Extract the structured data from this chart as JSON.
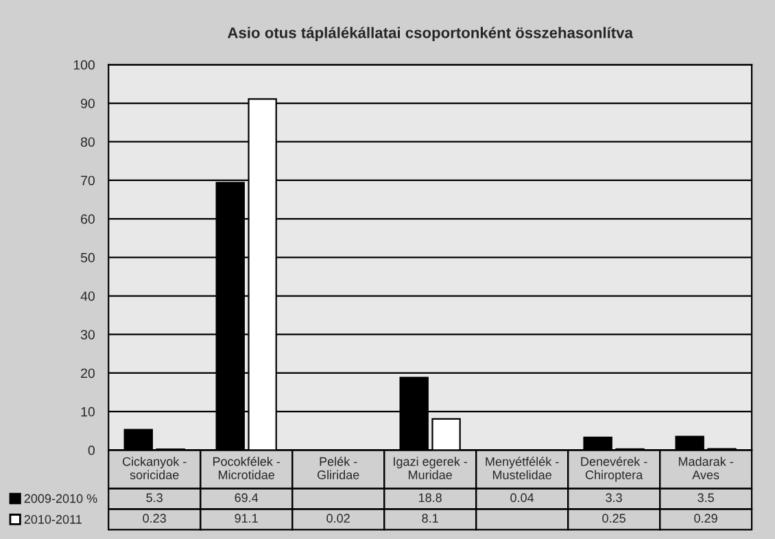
{
  "chart_data": {
    "type": "bar",
    "title": "Asio otus táplálékállatai csoportonként összehasonlítva",
    "categories": [
      "Cickanyok - soricidae",
      "Pocokfélek - Microtidae",
      "Pelék - Gliridae",
      "Igazi egerek - Muridae",
      "Menyétfélék - Mustelidae",
      "Denevérek - Chiroptera",
      "Madarak - Aves"
    ],
    "series": [
      {
        "name": "2009-2010 %",
        "color": "#000000",
        "values": [
          5.3,
          69.4,
          null,
          18.8,
          0.04,
          3.3,
          3.5
        ]
      },
      {
        "name": "2010-2011",
        "color": "#ffffff",
        "values": [
          0.23,
          91.1,
          0.02,
          8.1,
          null,
          0.25,
          0.29
        ]
      }
    ],
    "ylim": [
      0,
      100
    ],
    "yticks": [
      0,
      10,
      20,
      30,
      40,
      50,
      60,
      70,
      80,
      90,
      100
    ],
    "grid": "y",
    "legend": "bottom left",
    "data_labels": true
  }
}
